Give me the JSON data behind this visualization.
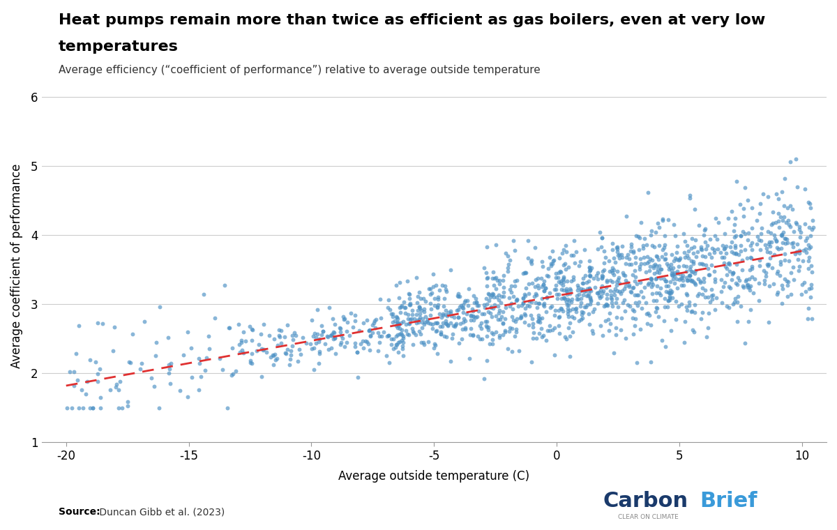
{
  "title_line1": "Heat pumps remain more than twice as efficient as gas boilers, even at very low",
  "title_line2": "temperatures",
  "subtitle": "Average efficiency (“coefficient of performance”) relative to average outside temperature",
  "xlabel": "Average outside temperature (C)",
  "ylabel": "Average coefficient of performance",
  "xlim": [
    -21,
    11
  ],
  "ylim": [
    1,
    6.1
  ],
  "yticks": [
    1,
    2,
    3,
    4,
    5,
    6
  ],
  "xticks": [
    -20,
    -15,
    -10,
    -5,
    0,
    5,
    10
  ],
  "dot_color": "#4a90c4",
  "dot_alpha": 0.65,
  "dot_size": 18,
  "trend_color": "#e03030",
  "source_bold": "Source:",
  "source_rest": " Duncan Gibb et al. (2023)",
  "carbonbrief_dark": "#1a3a6b",
  "carbonbrief_light": "#3a9ad9",
  "carbonbrief_subtext": "CLEAR ON CLIMATE",
  "background_color": "#ffffff",
  "trend_x": [
    -20,
    10
  ],
  "trend_y_start": 1.82,
  "trend_slope": 0.065
}
